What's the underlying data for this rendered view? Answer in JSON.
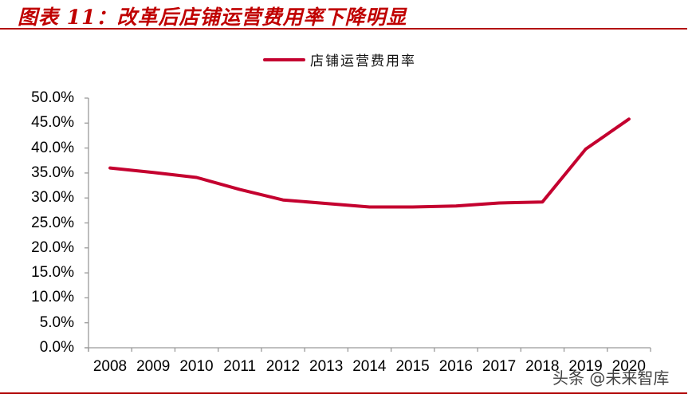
{
  "title": "图表 11：改革后店铺运营费用率下降明显",
  "legend": {
    "label": "店铺运营费用率",
    "color": "#c4002f"
  },
  "y_ticks": [
    "50.0%",
    "45.0%",
    "40.0%",
    "35.0%",
    "30.0%",
    "25.0%",
    "20.0%",
    "15.0%",
    "10.0%",
    "5.0%",
    "0.0%"
  ],
  "x_ticks": [
    "2008",
    "2009",
    "2010",
    "2011",
    "2012",
    "2013",
    "2014",
    "2015",
    "2016",
    "2017",
    "2018",
    "2019",
    "2020"
  ],
  "watermark": "头条 @未来智库",
  "colors": {
    "accent": "#c00000",
    "line": "#c4002f",
    "axis": "#999999"
  },
  "chart_data": {
    "type": "line",
    "title": "图表 11：改革后店铺运营费用率下降明显",
    "xlabel": "",
    "ylabel": "",
    "categories": [
      "2008",
      "2009",
      "2010",
      "2011",
      "2012",
      "2013",
      "2014",
      "2015",
      "2016",
      "2017",
      "2018",
      "2019",
      "2020"
    ],
    "series": [
      {
        "name": "店铺运营费用率",
        "values": [
          36.0,
          35.1,
          34.1,
          31.7,
          29.6,
          28.9,
          28.2,
          28.2,
          28.4,
          29.0,
          29.2,
          39.8,
          45.8
        ]
      }
    ],
    "ylim": [
      0,
      50
    ],
    "y_tick_step": 5,
    "y_format": "percent_1dp",
    "grid": false,
    "legend_position": "top"
  }
}
